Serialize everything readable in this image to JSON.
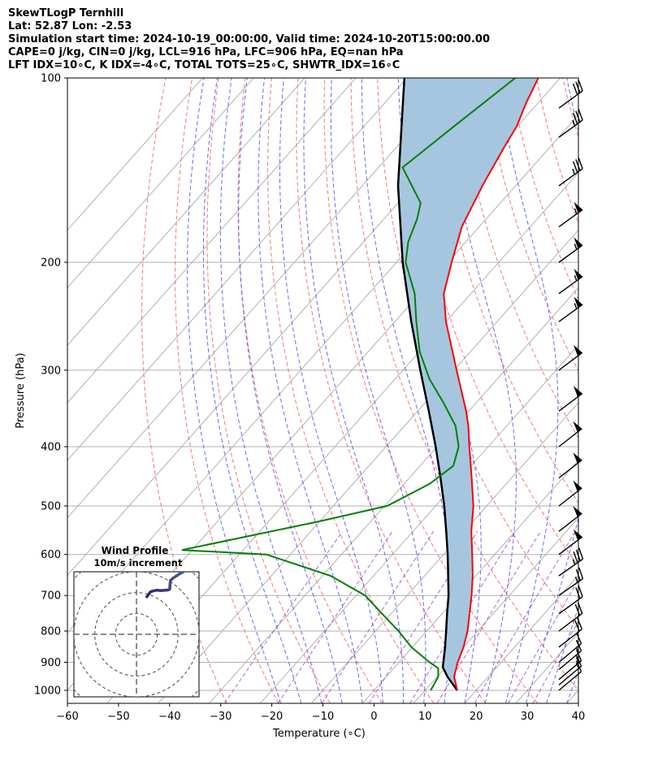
{
  "header": {
    "line1": "SkewTLogP Ternhill",
    "line2": "Lat: 52.87   Lon: -2.53",
    "line3": "Simulation start time: 2024-10-19_00:00:00, Valid time: 2024-10-20T15:00:00.00",
    "line4": "CAPE=0 j/kg, CIN=0 j/kg, LCL=916 hPa, LFC=906 hPa, EQ=nan hPa",
    "line5": "LFT IDX=10∘C, K IDX=-4∘C, TOTAL TOTS=25∘C, SHWTR_IDX=16∘C"
  },
  "colors": {
    "temperature": "#ff0000",
    "dewpoint": "#008000",
    "parcel": "#000000",
    "cape_fill": "#a6c6df",
    "dry_adiabat": "#ff6666",
    "moist_adiabat": "#4d4dff",
    "mixing_ratio": "#9933cc",
    "isotherm": "#aaaaaa",
    "hodograph": "#3d1e6b"
  },
  "chart_data": {
    "type": "skewt",
    "xlabel": "Temperature (∘C)",
    "ylabel": "Pressure (hPa)",
    "xlim": [
      -60,
      40
    ],
    "ylim": [
      1050,
      100
    ],
    "x_ticks": [
      "−60",
      "−50",
      "−40",
      "−30",
      "−20",
      "−10",
      "0",
      "10",
      "20",
      "30",
      "40"
    ],
    "x_tick_values": [
      -60,
      -50,
      -40,
      -30,
      -20,
      -10,
      0,
      10,
      20,
      30,
      40
    ],
    "y_ticks": [
      "100",
      "200",
      "300",
      "400",
      "500",
      "600",
      "700",
      "800",
      "900",
      "1000"
    ],
    "y_tick_values": [
      100,
      200,
      300,
      400,
      500,
      600,
      700,
      800,
      900,
      1000
    ],
    "temperature": [
      {
        "p": 1000,
        "t": 16.3
      },
      {
        "p": 950,
        "t": 13.3
      },
      {
        "p": 900,
        "t": 11.5
      },
      {
        "p": 850,
        "t": 10.0
      },
      {
        "p": 800,
        "t": 8.0
      },
      {
        "p": 750,
        "t": 5.4
      },
      {
        "p": 700,
        "t": 2.6
      },
      {
        "p": 650,
        "t": -0.6
      },
      {
        "p": 600,
        "t": -4.4
      },
      {
        "p": 550,
        "t": -8.6
      },
      {
        "p": 500,
        "t": -12.6
      },
      {
        "p": 450,
        "t": -17.8
      },
      {
        "p": 400,
        "t": -23.7
      },
      {
        "p": 370,
        "t": -27.5
      },
      {
        "p": 350,
        "t": -30.5
      },
      {
        "p": 300,
        "t": -39.5
      },
      {
        "p": 250,
        "t": -50.0
      },
      {
        "p": 225,
        "t": -55.3
      },
      {
        "p": 200,
        "t": -59.2
      },
      {
        "p": 175,
        "t": -63.4
      },
      {
        "p": 160,
        "t": -65.2
      },
      {
        "p": 150,
        "t": -66.5
      },
      {
        "p": 130,
        "t": -68.9
      },
      {
        "p": 120,
        "t": -70.1
      },
      {
        "p": 110,
        "t": -72.3
      },
      {
        "p": 100,
        "t": -74.3
      }
    ],
    "dewpoint": [
      {
        "p": 1000,
        "t": 11.1
      },
      {
        "p": 950,
        "t": 10.2
      },
      {
        "p": 920,
        "t": 8.7
      },
      {
        "p": 900,
        "t": 6.0
      },
      {
        "p": 850,
        "t": -0.2
      },
      {
        "p": 800,
        "t": -5.5
      },
      {
        "p": 750,
        "t": -11.7
      },
      {
        "p": 700,
        "t": -18.2
      },
      {
        "p": 650,
        "t": -28.4
      },
      {
        "p": 600,
        "t": -44.7
      },
      {
        "p": 590,
        "t": -62.0
      },
      {
        "p": 530,
        "t": -40.2
      },
      {
        "p": 500,
        "t": -29.5
      },
      {
        "p": 460,
        "t": -25.0
      },
      {
        "p": 430,
        "t": -23.5
      },
      {
        "p": 400,
        "t": -25.8
      },
      {
        "p": 370,
        "t": -30.0
      },
      {
        "p": 340,
        "t": -36.2
      },
      {
        "p": 310,
        "t": -43.3
      },
      {
        "p": 280,
        "t": -49.9
      },
      {
        "p": 250,
        "t": -55.8
      },
      {
        "p": 225,
        "t": -61.0
      },
      {
        "p": 200,
        "t": -68.2
      },
      {
        "p": 185,
        "t": -71.3
      },
      {
        "p": 170,
        "t": -73.5
      },
      {
        "p": 160,
        "t": -75.6
      },
      {
        "p": 140,
        "t": -85.3
      },
      {
        "p": 120,
        "t": -82.4
      },
      {
        "p": 100,
        "t": -78.8
      }
    ],
    "parcel": [
      {
        "p": 1000,
        "t": 16.3
      },
      {
        "p": 950,
        "t": 12.0
      },
      {
        "p": 916,
        "t": 9.4
      },
      {
        "p": 900,
        "t": 8.7
      },
      {
        "p": 850,
        "t": 6.4
      },
      {
        "p": 800,
        "t": 3.8
      },
      {
        "p": 750,
        "t": 1.0
      },
      {
        "p": 700,
        "t": -1.9
      },
      {
        "p": 650,
        "t": -5.4
      },
      {
        "p": 600,
        "t": -9.2
      },
      {
        "p": 550,
        "t": -13.5
      },
      {
        "p": 500,
        "t": -18.3
      },
      {
        "p": 450,
        "t": -23.9
      },
      {
        "p": 400,
        "t": -30.3
      },
      {
        "p": 350,
        "t": -37.8
      },
      {
        "p": 300,
        "t": -46.6
      },
      {
        "p": 250,
        "t": -56.8
      },
      {
        "p": 200,
        "t": -68.8
      },
      {
        "p": 150,
        "t": -83.0
      },
      {
        "p": 100,
        "t": -100.5
      }
    ],
    "wind_pressures": [
      1000,
      980,
      960,
      925,
      900,
      850,
      800,
      750,
      700,
      650,
      600,
      550,
      500,
      450,
      400,
      350,
      300,
      250,
      225,
      200,
      175,
      150,
      125,
      112
    ],
    "wind_speeds_kt": [
      10,
      15,
      15,
      15,
      15,
      20,
      20,
      20,
      25,
      35,
      50,
      50,
      50,
      50,
      50,
      50,
      50,
      55,
      55,
      55,
      55,
      35,
      35,
      30
    ],
    "wind_directions_deg": [
      230,
      230,
      230,
      230,
      230,
      232,
      233,
      234,
      235,
      235,
      233,
      232,
      232,
      232,
      232,
      233,
      233,
      234,
      234,
      234,
      234,
      234,
      234,
      234
    ],
    "hodograph": {
      "title": "Wind Profile",
      "subtitle": "10m/s increment",
      "max_speed_ms": 30,
      "ring_step_ms": 10,
      "points_uv_ms": [
        [
          5.0,
          18.0
        ],
        [
          6.0,
          19.5
        ],
        [
          6.7,
          20.3
        ],
        [
          7.5,
          20.7
        ],
        [
          9.5,
          21.1
        ],
        [
          12.0,
          21.0
        ],
        [
          14.4,
          21.2
        ],
        [
          15.3,
          21.3
        ],
        [
          15.9,
          21.6
        ],
        [
          16.0,
          22.6
        ],
        [
          16.1,
          24.0
        ],
        [
          16.3,
          25.8
        ],
        [
          17.6,
          27.0
        ],
        [
          19.6,
          28.3
        ],
        [
          21.3,
          29.4
        ],
        [
          22.5,
          30.0
        ],
        [
          23.0,
          30.6
        ],
        [
          23.0,
          31.0
        ]
      ]
    }
  }
}
